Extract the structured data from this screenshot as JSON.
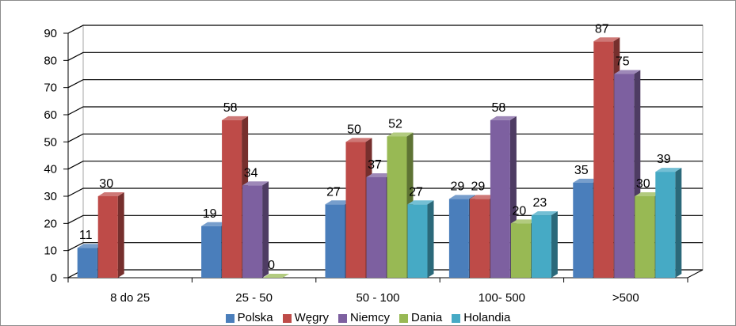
{
  "chart_data": {
    "type": "bar",
    "categories": [
      "8 do 25",
      "25 - 50",
      "50 - 100",
      "100- 500",
      ">500"
    ],
    "series": [
      {
        "name": "Polska",
        "color": "#4a7ebb",
        "values": [
          11,
          19,
          27,
          29,
          35
        ]
      },
      {
        "name": "Węgry",
        "color": "#be4b48",
        "values": [
          30,
          58,
          50,
          29,
          87
        ]
      },
      {
        "name": "Niemcy",
        "color": "#7d60a0",
        "values": [
          null,
          34,
          37,
          58,
          75
        ]
      },
      {
        "name": "Dania",
        "color": "#98b954",
        "values": [
          null,
          0,
          52,
          20,
          30
        ]
      },
      {
        "name": "Holandia",
        "color": "#46aac5",
        "values": [
          null,
          null,
          27,
          23,
          39
        ]
      }
    ],
    "yticks": [
      0,
      10,
      20,
      30,
      40,
      50,
      60,
      70,
      80,
      90
    ],
    "ylim": [
      0,
      90
    ],
    "grid": true,
    "legend_position": "bottom",
    "title": "",
    "xlabel": "",
    "ylabel": ""
  }
}
